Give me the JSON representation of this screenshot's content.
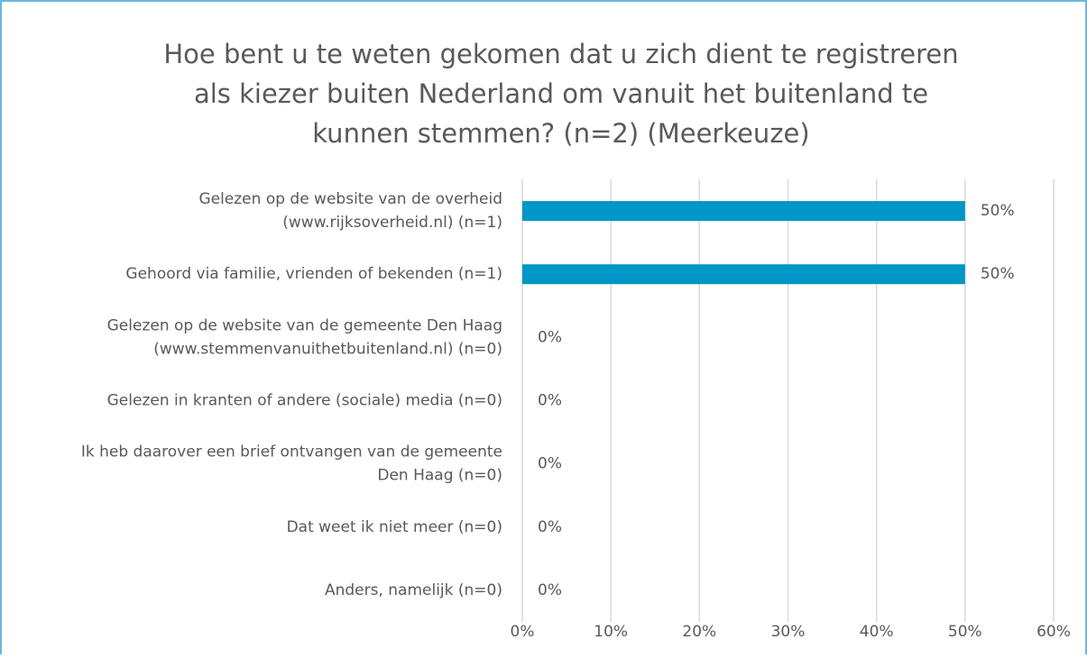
{
  "chart_data": {
    "type": "bar",
    "orientation": "horizontal",
    "title": "Hoe bent u te weten gekomen dat u zich dient te registreren\nals kiezer buiten Nederland om vanuit het buitenland te\nkunnen stemmen? (n=2) (Meerkeuze)",
    "categories": [
      "Gelezen op de website van de overheid\n(www.rijksoverheid.nl) (n=1)",
      "Gehoord via familie, vrienden of bekenden (n=1)",
      "Gelezen op de website van de gemeente Den Haag\n(www.stemmenvanuithetbuitenland.nl) (n=0)",
      "Gelezen in kranten of andere (sociale) media (n=0)",
      "Ik heb daarover een brief ontvangen van de gemeente\nDen Haag (n=0)",
      "Dat weet ik niet meer (n=0)",
      "Anders, namelijk (n=0)"
    ],
    "values": [
      50,
      50,
      0,
      0,
      0,
      0,
      0
    ],
    "value_labels": [
      "50%",
      "50%",
      "0%",
      "0%",
      "0%",
      "0%",
      "0%"
    ],
    "color": "#0096c6",
    "xlim": [
      0,
      60
    ],
    "xticks": [
      {
        "value": 0,
        "label": "0%"
      },
      {
        "value": 10,
        "label": "10%"
      },
      {
        "value": 20,
        "label": "20%"
      },
      {
        "value": 30,
        "label": "30%"
      },
      {
        "value": 40,
        "label": "40%"
      },
      {
        "value": 50,
        "label": "50%"
      },
      {
        "value": 60,
        "label": "60%"
      }
    ],
    "grid": true
  }
}
